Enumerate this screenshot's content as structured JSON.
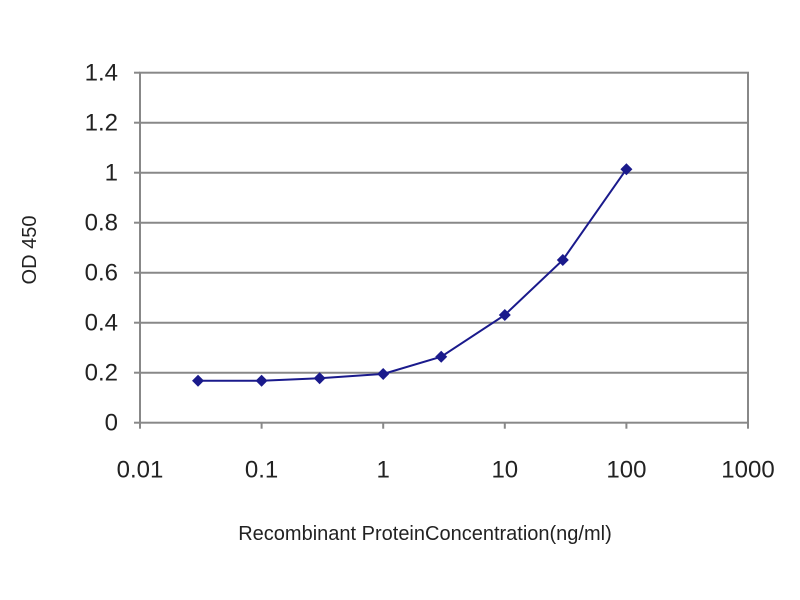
{
  "chart_data": {
    "type": "line",
    "title": "",
    "xlabel": "Recombinant ProteinConcentration(ng/ml)",
    "ylabel": "OD 450",
    "xscale": "log",
    "xlim": [
      0.01,
      1000
    ],
    "ylim": [
      0,
      1.4
    ],
    "x_ticks": [
      "0.01",
      "0.1",
      "1",
      "10",
      "100",
      "1000"
    ],
    "y_ticks": [
      "0",
      "0.2",
      "0.4",
      "0.6",
      "0.8",
      "1",
      "1.2",
      "1.4"
    ],
    "grid": "horizontal",
    "legend": "none",
    "series": [
      {
        "x": [
          0.03,
          0.1,
          0.3,
          1,
          3,
          10,
          30,
          100
        ],
        "y": [
          0.168,
          0.168,
          0.178,
          0.195,
          0.264,
          0.431,
          0.651,
          1.014
        ],
        "color": "#1a1a8c"
      }
    ]
  }
}
